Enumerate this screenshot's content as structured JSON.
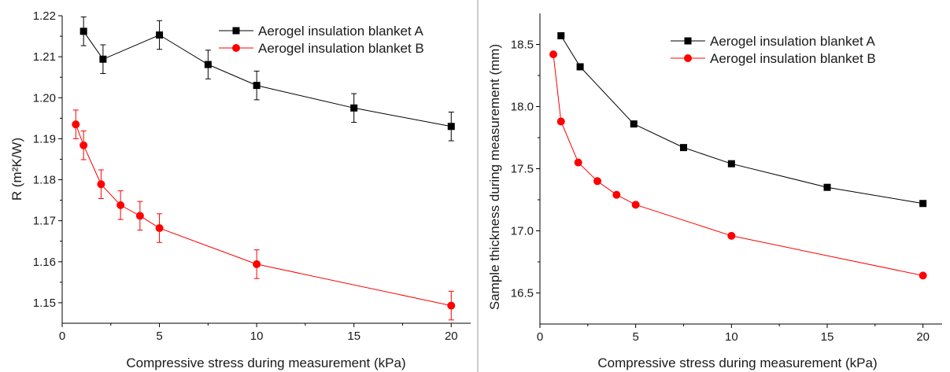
{
  "chart_data": [
    {
      "type": "line",
      "title": "",
      "xlabel": "Compressive stress during measurement (kPa)",
      "ylabel": "R (m²K/W)",
      "xlim": [
        0,
        21
      ],
      "ylim": [
        1.145,
        1.22
      ],
      "xticks": [
        0,
        5,
        10,
        15,
        20
      ],
      "xtick_labels": [
        "0",
        "5",
        "10",
        "15",
        "20"
      ],
      "yticks": [
        1.15,
        1.16,
        1.17,
        1.18,
        1.19,
        1.2,
        1.21,
        1.22
      ],
      "ytick_labels": [
        "1.15",
        "1.16",
        "1.17",
        "1.18",
        "1.19",
        "1.20",
        "1.21",
        "1.22"
      ],
      "grid": false,
      "legend_position": "top-right",
      "series": [
        {
          "name": "Aerogel insulation blanket A",
          "color": "#000000",
          "marker": "square",
          "line_style": "solid",
          "x": [
            1.1,
            2.1,
            5,
            7.5,
            10,
            15,
            20
          ],
          "y": [
            1.2162,
            1.2094,
            1.2153,
            1.2081,
            1.203,
            1.1975,
            1.193
          ],
          "err_up": [
            0.0035,
            0.0035,
            0.0035,
            0.0035,
            0.0035,
            0.0035,
            0.0035
          ],
          "err_down": [
            0.0035,
            0.0035,
            0.0035,
            0.0035,
            0.0035,
            0.0035,
            0.0035
          ]
        },
        {
          "name": "Aerogel insulation blanket B",
          "color": "#ff0000",
          "marker": "circle",
          "line_style": "solid",
          "x": [
            0.7,
            1.1,
            2,
            3,
            4,
            5,
            10,
            20
          ],
          "y": [
            1.1935,
            1.1884,
            1.1789,
            1.1738,
            1.1712,
            1.1682,
            1.1594,
            1.1493
          ],
          "err_up": [
            0.0035,
            0.0035,
            0.0035,
            0.0035,
            0.0035,
            0.0035,
            0.0035,
            0.0035
          ],
          "err_down": [
            0.0035,
            0.0035,
            0.0035,
            0.0035,
            0.0035,
            0.0035,
            0.0035,
            0.0035
          ]
        }
      ]
    },
    {
      "type": "line",
      "title": "",
      "xlabel": "Compressive stress during measurement (kPa)",
      "ylabel": "Sample thickness during measurement (mm)",
      "xlim": [
        0,
        21
      ],
      "ylim": [
        16.25,
        18.75
      ],
      "xticks": [
        0,
        5,
        10,
        15,
        20
      ],
      "xtick_labels": [
        "0",
        "5",
        "10",
        "15",
        "20"
      ],
      "yticks": [
        16.5,
        17.0,
        17.5,
        18.0,
        18.5
      ],
      "ytick_labels": [
        "16.5",
        "17.0",
        "17.5",
        "18.0",
        "18.5"
      ],
      "grid": false,
      "legend_position": "top-right",
      "series": [
        {
          "name": "Aerogel insulation blanket A",
          "color": "#000000",
          "marker": "square",
          "line_style": "solid",
          "x": [
            1.1,
            2.1,
            4.9,
            7.5,
            10,
            15,
            20
          ],
          "y": [
            18.57,
            18.32,
            17.86,
            17.67,
            17.54,
            17.35,
            17.22
          ]
        },
        {
          "name": "Aerogel insulation blanket B",
          "color": "#ff0000",
          "marker": "circle",
          "line_style": "solid",
          "x": [
            0.7,
            1.1,
            2,
            3,
            4,
            5,
            10,
            20
          ],
          "y": [
            18.42,
            17.88,
            17.55,
            17.4,
            17.29,
            17.21,
            16.96,
            16.64
          ]
        }
      ]
    }
  ]
}
